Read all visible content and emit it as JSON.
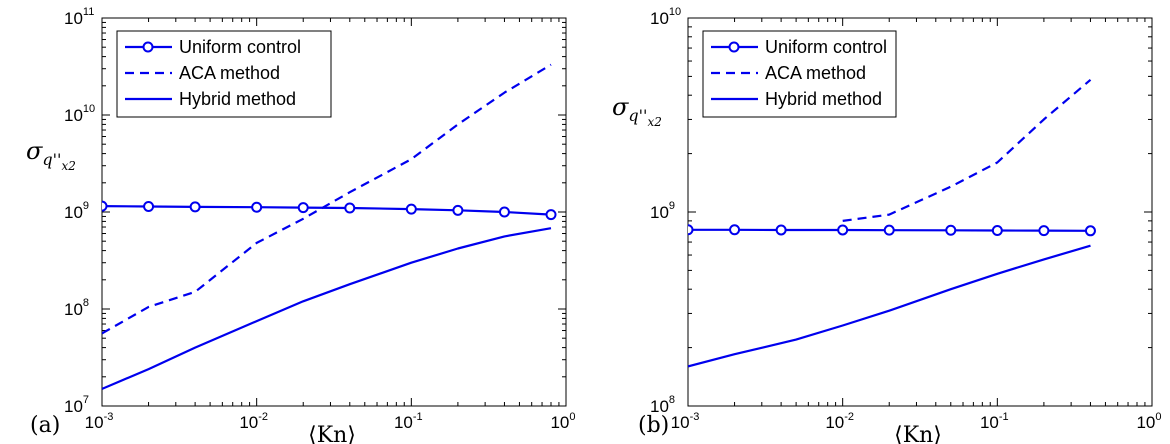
{
  "chart_data": [
    {
      "type": "line",
      "panel_label": "(a)",
      "xlabel": "⟨Kn⟩",
      "ylabel": "σ",
      "ylabel_sub": "q''",
      "ylabel_subsub": "x2",
      "xscale": "log",
      "yscale": "log",
      "xlim": [
        0.001,
        1
      ],
      "ylim": [
        10000000,
        100000000000
      ],
      "x_ticks": [
        {
          "base": "10",
          "exp": "-3"
        },
        {
          "base": "10",
          "exp": "-2"
        },
        {
          "base": "10",
          "exp": "-1"
        },
        {
          "base": "10",
          "exp": "0"
        }
      ],
      "y_ticks": [
        {
          "base": "10",
          "exp": "7"
        },
        {
          "base": "10",
          "exp": "8"
        },
        {
          "base": "10",
          "exp": "9"
        },
        {
          "base": "10",
          "exp": "10"
        },
        {
          "base": "10",
          "exp": "11"
        }
      ],
      "grid": false,
      "legend_position": "top-left",
      "color": "#0000ee",
      "series": [
        {
          "name": "Uniform control",
          "style": "solid-circle",
          "x": [
            0.001,
            0.002,
            0.004,
            0.01,
            0.02,
            0.04,
            0.1,
            0.2,
            0.4,
            0.8
          ],
          "y": [
            1150000000,
            1140000000,
            1130000000,
            1120000000,
            1110000000,
            1100000000,
            1070000000,
            1040000000,
            1000000000,
            940000000
          ]
        },
        {
          "name": "ACA method",
          "style": "dashed",
          "x": [
            0.001,
            0.002,
            0.004,
            0.01,
            0.02,
            0.04,
            0.1,
            0.2,
            0.4,
            0.8
          ],
          "y": [
            56000000,
            105000000,
            150000000,
            480000000,
            850000000,
            1600000000,
            3500000000,
            8000000000,
            17000000000,
            33000000000
          ]
        },
        {
          "name": "Hybrid method",
          "style": "solid",
          "x": [
            0.001,
            0.002,
            0.004,
            0.01,
            0.02,
            0.04,
            0.1,
            0.2,
            0.4,
            0.8
          ],
          "y": [
            15000000,
            24000000,
            40000000,
            75000000,
            120000000,
            180000000,
            300000000,
            420000000,
            560000000,
            680000000
          ]
        }
      ]
    },
    {
      "type": "line",
      "panel_label": "(b)",
      "xlabel": "⟨Kn⟩",
      "ylabel": "σ",
      "ylabel_sub": "q''",
      "ylabel_subsub": "x2",
      "xscale": "log",
      "yscale": "log",
      "xlim": [
        0.001,
        1
      ],
      "ylim": [
        100000000,
        10000000000
      ],
      "x_ticks": [
        {
          "base": "10",
          "exp": "-3"
        },
        {
          "base": "10",
          "exp": "-2"
        },
        {
          "base": "10",
          "exp": "-1"
        },
        {
          "base": "10",
          "exp": "0"
        }
      ],
      "y_ticks": [
        {
          "base": "10",
          "exp": "8"
        },
        {
          "base": "10",
          "exp": "9"
        },
        {
          "base": "10",
          "exp": "10"
        }
      ],
      "grid": false,
      "legend_position": "top-left",
      "color": "#0000ee",
      "series": [
        {
          "name": "Uniform control",
          "style": "solid-circle",
          "x": [
            0.001,
            0.002,
            0.004,
            0.01,
            0.02,
            0.05,
            0.1,
            0.2,
            0.4
          ],
          "y": [
            810000000,
            810000000,
            808000000,
            808000000,
            806000000,
            805000000,
            803000000,
            802000000,
            800000000
          ]
        },
        {
          "name": "ACA method",
          "style": "dashed",
          "x": [
            0.01,
            0.02,
            0.05,
            0.1,
            0.2,
            0.4
          ],
          "y": [
            900000000,
            970000000,
            1350000000,
            1800000000,
            3000000000,
            4800000000
          ]
        },
        {
          "name": "Hybrid method",
          "style": "solid",
          "x": [
            0.001,
            0.002,
            0.005,
            0.01,
            0.02,
            0.05,
            0.1,
            0.2,
            0.4
          ],
          "y": [
            160000000,
            185000000,
            220000000,
            260000000,
            310000000,
            400000000,
            480000000,
            570000000,
            670000000
          ]
        }
      ]
    }
  ]
}
